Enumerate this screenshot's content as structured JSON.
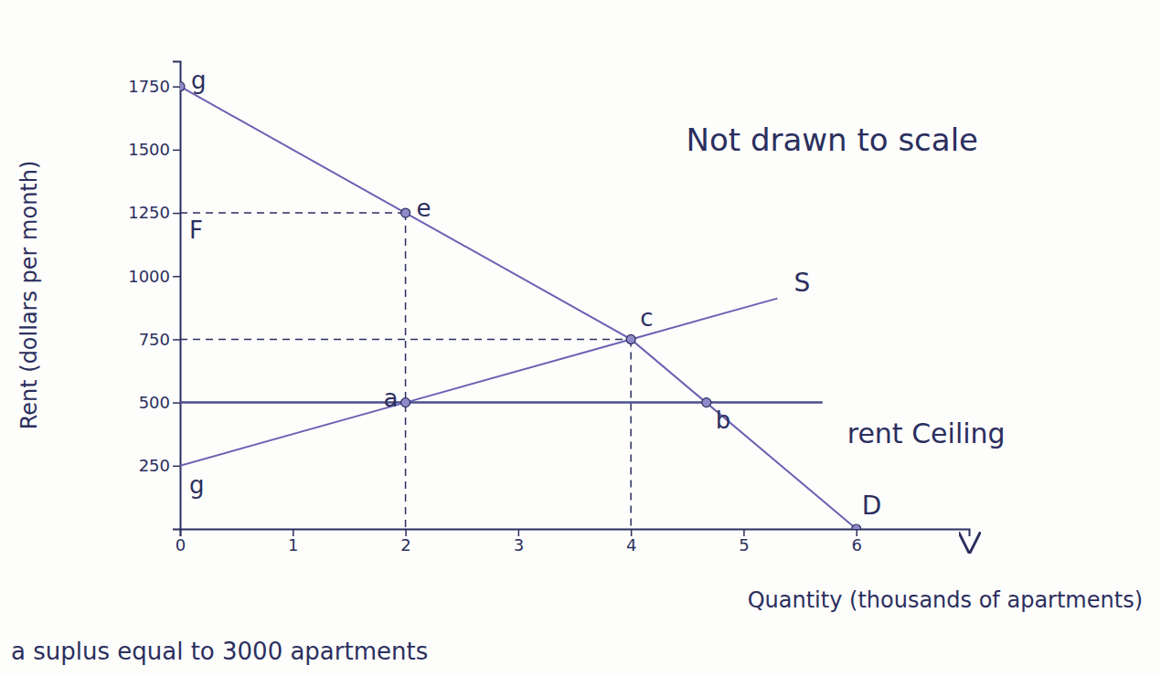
{
  "chart_data": {
    "type": "line",
    "note": "Not drawn to scale",
    "caption": "a suplus equal to 3000 apartments",
    "x_label": "Quantity (thousands of apartments)",
    "y_label": "Rent (dollars per month)",
    "xlim": [
      0,
      7
    ],
    "xticks": [
      0,
      1,
      2,
      3,
      4,
      5,
      6
    ],
    "ylim": [
      0,
      1850
    ],
    "yticks": [
      250,
      500,
      750,
      1000,
      1250,
      1500,
      1750
    ],
    "series": [
      {
        "name": "D",
        "color": "#6a62b3",
        "x": [
          0,
          2,
          4,
          6
        ],
        "values": [
          1750,
          1250,
          750,
          0
        ]
      },
      {
        "name": "S",
        "color": "#6a62b3",
        "x": [
          0,
          2,
          4,
          5.3
        ],
        "values": [
          250,
          500,
          750,
          912
        ]
      }
    ],
    "rent_ceiling": {
      "label": "rent Ceiling",
      "value": 500,
      "x": [
        0,
        5.7
      ],
      "color": "#4a4f8a"
    },
    "guides": {
      "line_style": "dashed",
      "points": [
        {
          "x": 2,
          "y": 1250
        },
        {
          "x": 4,
          "y": 750
        }
      ]
    },
    "points": [
      {
        "label": "g",
        "x": 0,
        "y": 1750,
        "marker": "circle"
      },
      {
        "label": "e",
        "x": 2,
        "y": 1250,
        "marker": "circle"
      },
      {
        "label": "F",
        "x": 0,
        "y": 1250,
        "marker": "none"
      },
      {
        "label": "c",
        "x": 4,
        "y": 750,
        "marker": "circle"
      },
      {
        "label": "b",
        "x": 4.67,
        "y": 500,
        "marker": "circle"
      },
      {
        "label": "a",
        "x": 2,
        "y": 500,
        "marker": "circle"
      },
      {
        "label": "g",
        "x": 0,
        "y": 250,
        "marker": "none"
      },
      {
        "label": "D",
        "x": 6,
        "y": 0,
        "marker": "circle"
      }
    ]
  }
}
